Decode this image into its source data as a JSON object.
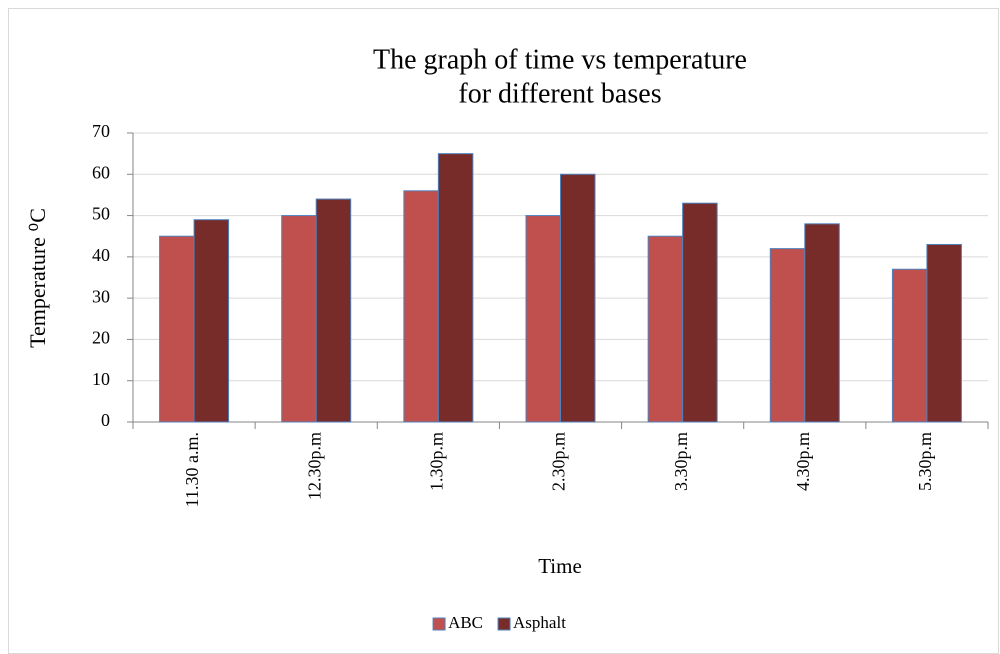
{
  "chart_data": {
    "type": "bar",
    "title": [
      "The graph of time vs temperature",
      "for different bases"
    ],
    "x_label": "Time",
    "y_label": "Temperature ⁰C",
    "categories": [
      "11.30 a.m.",
      "12.30p.m",
      "1.30p.m",
      "2.30p.m",
      "3.30p.m",
      "4.30p.m",
      "5.30p.m"
    ],
    "series": [
      {
        "name": "ABC",
        "color": "#c0504d",
        "values": [
          45,
          50,
          56,
          50,
          45,
          42,
          37
        ]
      },
      {
        "name": "Asphalt",
        "color": "#772c2a",
        "values": [
          49,
          54,
          65,
          60,
          53,
          48,
          43
        ]
      }
    ],
    "ylim": [
      0,
      70
    ],
    "yticks": [
      0,
      10,
      20,
      30,
      40,
      50,
      60,
      70
    ],
    "grid": true,
    "legend": "bottom"
  }
}
